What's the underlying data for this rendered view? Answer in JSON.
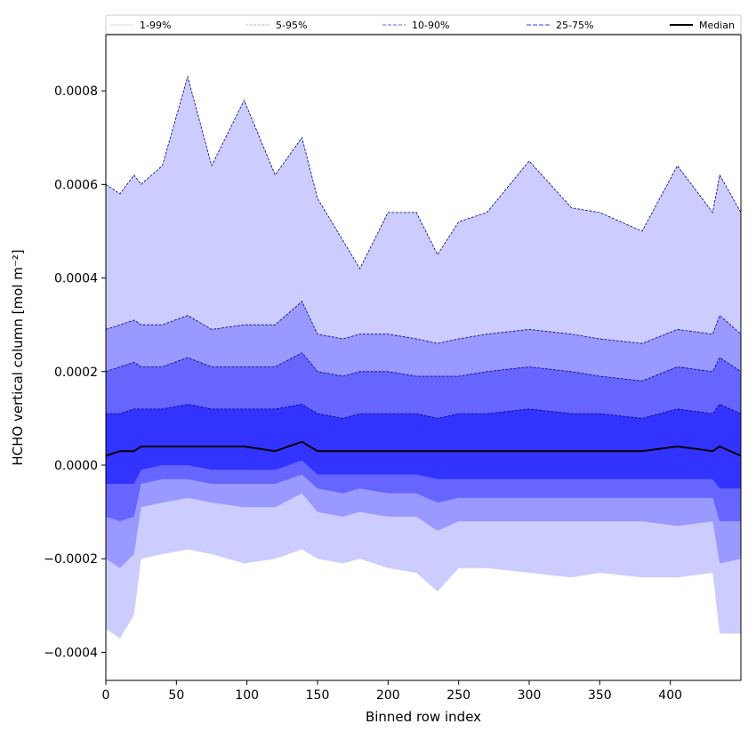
{
  "chart_data": {
    "type": "area",
    "xlabel": "Binned row index",
    "ylabel": "HCHO vertical column [mol m⁻²]",
    "xlim": [
      0,
      450
    ],
    "ylim": [
      -0.00046,
      0.00092
    ],
    "x_ticks": [
      0,
      50,
      100,
      150,
      200,
      250,
      300,
      350,
      400
    ],
    "x_tick_labels": [
      "0",
      "50",
      "100",
      "150",
      "200",
      "250",
      "300",
      "350",
      "400"
    ],
    "y_ticks": [
      -0.0004,
      -0.0002,
      0.0,
      0.0002,
      0.0004,
      0.0006,
      0.0008
    ],
    "y_tick_labels": [
      "−0.0004",
      "−0.0002",
      "0.0000",
      "0.0002",
      "0.0004",
      "0.0006",
      "0.0008"
    ],
    "legend_position": "top, spanning full width",
    "grid": false,
    "x": [
      0,
      10,
      20,
      25,
      40,
      58,
      75,
      98,
      120,
      139,
      150,
      168,
      180,
      200,
      220,
      235,
      250,
      270,
      300,
      330,
      350,
      380,
      405,
      430,
      435,
      450
    ],
    "series": [
      {
        "name": "1-99%",
        "kind": "band",
        "color": "#ccccff",
        "lower": [
          -0.00035,
          -0.00037,
          -0.00032,
          -0.0002,
          -0.00019,
          -0.00018,
          -0.00019,
          -0.00021,
          -0.0002,
          -0.00018,
          -0.0002,
          -0.00021,
          -0.0002,
          -0.00022,
          -0.00023,
          -0.00027,
          -0.00022,
          -0.00022,
          -0.00023,
          -0.00024,
          -0.00023,
          -0.00024,
          -0.00024,
          -0.00023,
          -0.00036,
          -0.00036
        ],
        "upper": [
          0.0006,
          0.00058,
          0.00062,
          0.0006,
          0.00064,
          0.00083,
          0.00064,
          0.00078,
          0.00062,
          0.0007,
          0.00057,
          0.00048,
          0.00042,
          0.00054,
          0.00054,
          0.00045,
          0.00052,
          0.00054,
          0.00065,
          0.00055,
          0.00054,
          0.0005,
          0.00064,
          0.00054,
          0.00062,
          0.00054
        ]
      },
      {
        "name": "5-95%",
        "kind": "band",
        "color": "#9999ff",
        "lower": [
          -0.0002,
          -0.00022,
          -0.00019,
          -9e-05,
          -8e-05,
          -7e-05,
          -8e-05,
          -9e-05,
          -9e-05,
          -6e-05,
          -0.0001,
          -0.00011,
          -0.0001,
          -0.00011,
          -0.00011,
          -0.00014,
          -0.00012,
          -0.00012,
          -0.00012,
          -0.00012,
          -0.00012,
          -0.00012,
          -0.00013,
          -0.00012,
          -0.00021,
          -0.0002
        ],
        "upper": [
          0.00029,
          0.0003,
          0.00031,
          0.0003,
          0.0003,
          0.00032,
          0.00029,
          0.0003,
          0.0003,
          0.00035,
          0.00028,
          0.00027,
          0.00028,
          0.00028,
          0.00027,
          0.00026,
          0.00027,
          0.00028,
          0.00029,
          0.00028,
          0.00027,
          0.00026,
          0.00029,
          0.00028,
          0.00032,
          0.00028
        ]
      },
      {
        "name": "10-90%",
        "kind": "band",
        "color": "#6666ff",
        "lower": [
          -0.00011,
          -0.00012,
          -0.00011,
          -4e-05,
          -3e-05,
          -3e-05,
          -4e-05,
          -4e-05,
          -4e-05,
          -2e-05,
          -5e-05,
          -6e-05,
          -5e-05,
          -6e-05,
          -6e-05,
          -8e-05,
          -7e-05,
          -7e-05,
          -7e-05,
          -7e-05,
          -7e-05,
          -7e-05,
          -7e-05,
          -7e-05,
          -0.00012,
          -0.00012
        ],
        "upper": [
          0.0002,
          0.00021,
          0.00022,
          0.00021,
          0.00021,
          0.00023,
          0.00021,
          0.00021,
          0.00021,
          0.00024,
          0.0002,
          0.00019,
          0.0002,
          0.0002,
          0.00019,
          0.00019,
          0.00019,
          0.0002,
          0.00021,
          0.0002,
          0.00019,
          0.00018,
          0.00021,
          0.0002,
          0.00023,
          0.0002
        ]
      },
      {
        "name": "25-75%",
        "kind": "band",
        "color": "#3333ff",
        "lower": [
          -4e-05,
          -4e-05,
          -4e-05,
          -1e-05,
          0.0,
          0.0,
          -1e-05,
          -1e-05,
          -1e-05,
          1e-05,
          -2e-05,
          -2e-05,
          -2e-05,
          -2e-05,
          -2e-05,
          -3e-05,
          -3e-05,
          -3e-05,
          -3e-05,
          -3e-05,
          -3e-05,
          -3e-05,
          -3e-05,
          -3e-05,
          -5e-05,
          -5e-05
        ],
        "upper": [
          0.00011,
          0.00011,
          0.00012,
          0.00012,
          0.00012,
          0.00013,
          0.00012,
          0.00012,
          0.00012,
          0.00013,
          0.00011,
          0.0001,
          0.00011,
          0.00011,
          0.00011,
          0.0001,
          0.00011,
          0.00011,
          0.00012,
          0.00011,
          0.00011,
          0.0001,
          0.00012,
          0.00011,
          0.00013,
          0.00011
        ]
      },
      {
        "name": "Median",
        "kind": "line",
        "color": "#000000",
        "values": [
          2e-05,
          3e-05,
          3e-05,
          4e-05,
          4e-05,
          4e-05,
          4e-05,
          4e-05,
          3e-05,
          5e-05,
          3e-05,
          3e-05,
          3e-05,
          3e-05,
          3e-05,
          3e-05,
          3e-05,
          3e-05,
          3e-05,
          3e-05,
          3e-05,
          3e-05,
          4e-05,
          3e-05,
          4e-05,
          2e-05
        ]
      }
    ]
  }
}
